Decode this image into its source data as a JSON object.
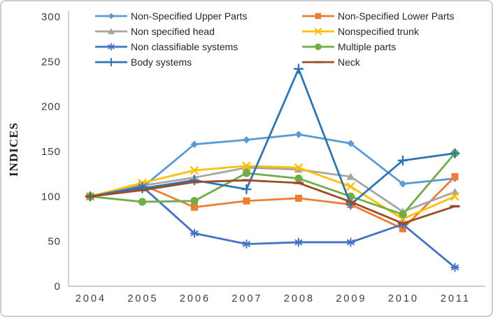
{
  "chart_data": {
    "type": "line",
    "title": "",
    "xlabel": "",
    "ylabel": "INDICES",
    "ylim": [
      0,
      300
    ],
    "yticks": [
      0,
      50,
      100,
      150,
      200,
      250,
      300
    ],
    "grid": false,
    "legend_position": "top-two-columns",
    "categories": [
      "2004",
      "2005",
      "2006",
      "2007",
      "2008",
      "2009",
      "2010",
      "2011"
    ],
    "series": [
      {
        "name": "Non-Specified Upper Parts",
        "color": "#5B9BD5",
        "marker": "diamond",
        "values": [
          100,
          110,
          158,
          163,
          169,
          159,
          114,
          120
        ]
      },
      {
        "name": "Non-Specified Lower Parts",
        "color": "#ED7D31",
        "marker": "square",
        "values": [
          100,
          113,
          88,
          95,
          98,
          91,
          64,
          122
        ]
      },
      {
        "name": "Non specified head",
        "color": "#A5A5A5",
        "marker": "triangle",
        "values": [
          100,
          112,
          121,
          132,
          130,
          122,
          83,
          105
        ]
      },
      {
        "name": "Nonspecified trunk",
        "color": "#FFC000",
        "marker": "x",
        "values": [
          100,
          115,
          129,
          134,
          132,
          111,
          75,
          100
        ]
      },
      {
        "name": "Non classifiable systems",
        "color": "#4472C4",
        "marker": "asterisk",
        "values": [
          100,
          111,
          59,
          47,
          49,
          49,
          69,
          21
        ]
      },
      {
        "name": "Multiple parts",
        "color": "#70AD47",
        "marker": "circle",
        "values": [
          100,
          94,
          95,
          126,
          120,
          100,
          80,
          148
        ]
      },
      {
        "name": "Body systems",
        "color": "#2E75B6",
        "marker": "plus",
        "values": [
          100,
          109,
          118,
          108,
          242,
          91,
          140,
          148
        ]
      },
      {
        "name": "Neck",
        "color": "#9E4B28",
        "marker": "dash",
        "values": [
          100,
          107,
          116,
          118,
          115,
          94,
          70,
          89
        ]
      }
    ],
    "axis_color": "#BFBFBF",
    "tick_label_color": "#3B3B3B"
  }
}
